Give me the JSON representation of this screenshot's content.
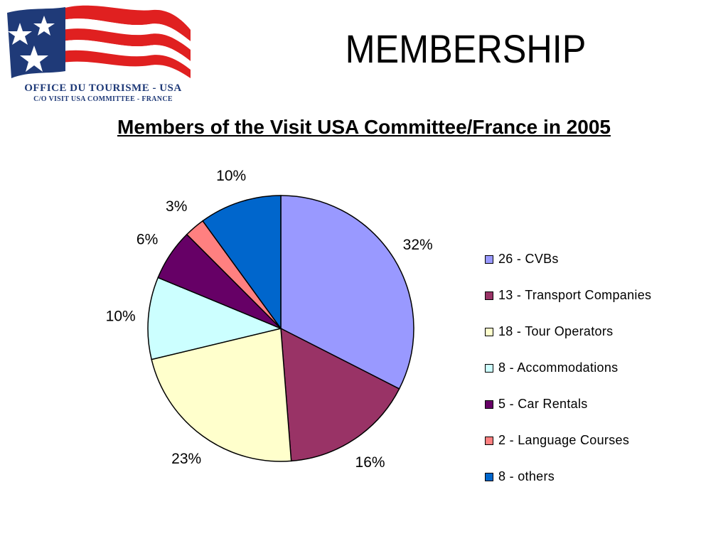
{
  "logo": {
    "line1": "OFFICE DU TOURISME - USA",
    "line2": "C/O VISIT USA COMMITTEE  -  FRANCE",
    "colors": {
      "blue": "#1f3a78",
      "red": "#e02020",
      "white": "#ffffff"
    }
  },
  "slide_title": "MEMBERSHIP",
  "chart_data": {
    "type": "pie",
    "title": "Members of the Visit USA Committee/France in 2005",
    "start_angle_deg": 0,
    "direction": "clockwise",
    "legend_position": "right",
    "slices": [
      {
        "label": "26 - CVBs",
        "value": 26,
        "percent_label": "32%",
        "color": "#9999ff"
      },
      {
        "label": "13 - Transport Companies",
        "value": 13,
        "percent_label": "16%",
        "color": "#993366"
      },
      {
        "label": "18 - Tour Operators",
        "value": 18,
        "percent_label": "23%",
        "color": "#ffffcc"
      },
      {
        "label": "8 - Accommodations",
        "value": 8,
        "percent_label": "10%",
        "color": "#ccffff"
      },
      {
        "label": "5 - Car Rentals",
        "value": 5,
        "percent_label": "6%",
        "color": "#660066"
      },
      {
        "label": "2 - Language Courses",
        "value": 2,
        "percent_label": "3%",
        "color": "#ff8080"
      },
      {
        "label": "8 - others",
        "value": 8,
        "percent_label": "10%",
        "color": "#0066cc"
      }
    ]
  }
}
